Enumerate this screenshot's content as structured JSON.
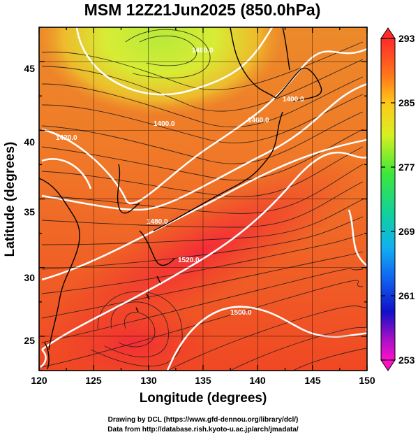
{
  "title": "MSM 12Z21Jun2025 (850.0hPa)",
  "xlabel": "Longitude (degrees)",
  "ylabel": "Latitude  (degrees)",
  "x_ticks": [
    "120",
    "125",
    "130",
    "135",
    "140",
    "145",
    "150"
  ],
  "y_ticks": [
    "25",
    "30",
    "35",
    "40",
    "45"
  ],
  "colorbar": {
    "min": 253,
    "max": 293,
    "ticks": [
      "293",
      "285",
      "277",
      "269",
      "261",
      "253"
    ]
  },
  "contour_labels": [
    "1460.0",
    "1400.0",
    "1460.0",
    "1420.0",
    "1480.0",
    "1520.0",
    "1500.0",
    "1400.0"
  ],
  "credits": {
    "line1": "Drawing by DCL (https://www.gfd-dennou.org/library/dcl/)",
    "line2": "Data from http://database.rish.kyoto-u.ac.jp/arch/jmadata/"
  },
  "chart_data": {
    "type": "heatmap",
    "title": "MSM 12Z21Jun2025 (850.0hPa)",
    "xlabel": "Longitude (degrees)",
    "ylabel": "Latitude  (degrees)",
    "xlim": [
      120,
      150
    ],
    "ylim": [
      22.5,
      47.5
    ],
    "colorbar_range": [
      253,
      293
    ],
    "contour_interval": 20,
    "contour_levels": [
      1400,
      1420,
      1460,
      1480,
      1500,
      1520
    ]
  }
}
